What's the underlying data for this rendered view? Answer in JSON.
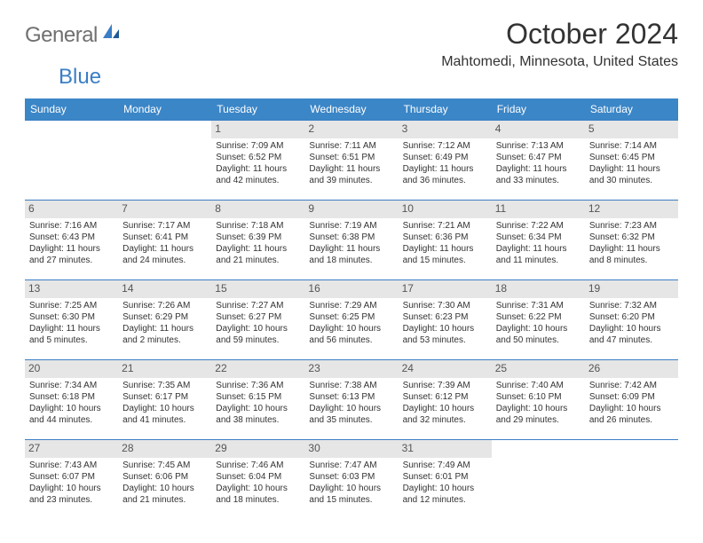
{
  "logo": {
    "text_gray": "General",
    "text_blue": "Blue"
  },
  "title": {
    "month": "October 2024",
    "location": "Mahtomedi, Minnesota, United States"
  },
  "colors": {
    "header_bg": "#3b86c7",
    "header_text": "#ffffff",
    "border": "#3b7ec4",
    "daynum_bg": "#e6e6e6",
    "text": "#333333",
    "logo_gray": "#707070",
    "logo_blue": "#3b7ec4"
  },
  "day_headers": [
    "Sunday",
    "Monday",
    "Tuesday",
    "Wednesday",
    "Thursday",
    "Friday",
    "Saturday"
  ],
  "weeks": [
    [
      {
        "day": "",
        "lines": []
      },
      {
        "day": "",
        "lines": []
      },
      {
        "day": "1",
        "lines": [
          "Sunrise: 7:09 AM",
          "Sunset: 6:52 PM",
          "Daylight: 11 hours",
          "and 42 minutes."
        ]
      },
      {
        "day": "2",
        "lines": [
          "Sunrise: 7:11 AM",
          "Sunset: 6:51 PM",
          "Daylight: 11 hours",
          "and 39 minutes."
        ]
      },
      {
        "day": "3",
        "lines": [
          "Sunrise: 7:12 AM",
          "Sunset: 6:49 PM",
          "Daylight: 11 hours",
          "and 36 minutes."
        ]
      },
      {
        "day": "4",
        "lines": [
          "Sunrise: 7:13 AM",
          "Sunset: 6:47 PM",
          "Daylight: 11 hours",
          "and 33 minutes."
        ]
      },
      {
        "day": "5",
        "lines": [
          "Sunrise: 7:14 AM",
          "Sunset: 6:45 PM",
          "Daylight: 11 hours",
          "and 30 minutes."
        ]
      }
    ],
    [
      {
        "day": "6",
        "lines": [
          "Sunrise: 7:16 AM",
          "Sunset: 6:43 PM",
          "Daylight: 11 hours",
          "and 27 minutes."
        ]
      },
      {
        "day": "7",
        "lines": [
          "Sunrise: 7:17 AM",
          "Sunset: 6:41 PM",
          "Daylight: 11 hours",
          "and 24 minutes."
        ]
      },
      {
        "day": "8",
        "lines": [
          "Sunrise: 7:18 AM",
          "Sunset: 6:39 PM",
          "Daylight: 11 hours",
          "and 21 minutes."
        ]
      },
      {
        "day": "9",
        "lines": [
          "Sunrise: 7:19 AM",
          "Sunset: 6:38 PM",
          "Daylight: 11 hours",
          "and 18 minutes."
        ]
      },
      {
        "day": "10",
        "lines": [
          "Sunrise: 7:21 AM",
          "Sunset: 6:36 PM",
          "Daylight: 11 hours",
          "and 15 minutes."
        ]
      },
      {
        "day": "11",
        "lines": [
          "Sunrise: 7:22 AM",
          "Sunset: 6:34 PM",
          "Daylight: 11 hours",
          "and 11 minutes."
        ]
      },
      {
        "day": "12",
        "lines": [
          "Sunrise: 7:23 AM",
          "Sunset: 6:32 PM",
          "Daylight: 11 hours",
          "and 8 minutes."
        ]
      }
    ],
    [
      {
        "day": "13",
        "lines": [
          "Sunrise: 7:25 AM",
          "Sunset: 6:30 PM",
          "Daylight: 11 hours",
          "and 5 minutes."
        ]
      },
      {
        "day": "14",
        "lines": [
          "Sunrise: 7:26 AM",
          "Sunset: 6:29 PM",
          "Daylight: 11 hours",
          "and 2 minutes."
        ]
      },
      {
        "day": "15",
        "lines": [
          "Sunrise: 7:27 AM",
          "Sunset: 6:27 PM",
          "Daylight: 10 hours",
          "and 59 minutes."
        ]
      },
      {
        "day": "16",
        "lines": [
          "Sunrise: 7:29 AM",
          "Sunset: 6:25 PM",
          "Daylight: 10 hours",
          "and 56 minutes."
        ]
      },
      {
        "day": "17",
        "lines": [
          "Sunrise: 7:30 AM",
          "Sunset: 6:23 PM",
          "Daylight: 10 hours",
          "and 53 minutes."
        ]
      },
      {
        "day": "18",
        "lines": [
          "Sunrise: 7:31 AM",
          "Sunset: 6:22 PM",
          "Daylight: 10 hours",
          "and 50 minutes."
        ]
      },
      {
        "day": "19",
        "lines": [
          "Sunrise: 7:32 AM",
          "Sunset: 6:20 PM",
          "Daylight: 10 hours",
          "and 47 minutes."
        ]
      }
    ],
    [
      {
        "day": "20",
        "lines": [
          "Sunrise: 7:34 AM",
          "Sunset: 6:18 PM",
          "Daylight: 10 hours",
          "and 44 minutes."
        ]
      },
      {
        "day": "21",
        "lines": [
          "Sunrise: 7:35 AM",
          "Sunset: 6:17 PM",
          "Daylight: 10 hours",
          "and 41 minutes."
        ]
      },
      {
        "day": "22",
        "lines": [
          "Sunrise: 7:36 AM",
          "Sunset: 6:15 PM",
          "Daylight: 10 hours",
          "and 38 minutes."
        ]
      },
      {
        "day": "23",
        "lines": [
          "Sunrise: 7:38 AM",
          "Sunset: 6:13 PM",
          "Daylight: 10 hours",
          "and 35 minutes."
        ]
      },
      {
        "day": "24",
        "lines": [
          "Sunrise: 7:39 AM",
          "Sunset: 6:12 PM",
          "Daylight: 10 hours",
          "and 32 minutes."
        ]
      },
      {
        "day": "25",
        "lines": [
          "Sunrise: 7:40 AM",
          "Sunset: 6:10 PM",
          "Daylight: 10 hours",
          "and 29 minutes."
        ]
      },
      {
        "day": "26",
        "lines": [
          "Sunrise: 7:42 AM",
          "Sunset: 6:09 PM",
          "Daylight: 10 hours",
          "and 26 minutes."
        ]
      }
    ],
    [
      {
        "day": "27",
        "lines": [
          "Sunrise: 7:43 AM",
          "Sunset: 6:07 PM",
          "Daylight: 10 hours",
          "and 23 minutes."
        ]
      },
      {
        "day": "28",
        "lines": [
          "Sunrise: 7:45 AM",
          "Sunset: 6:06 PM",
          "Daylight: 10 hours",
          "and 21 minutes."
        ]
      },
      {
        "day": "29",
        "lines": [
          "Sunrise: 7:46 AM",
          "Sunset: 6:04 PM",
          "Daylight: 10 hours",
          "and 18 minutes."
        ]
      },
      {
        "day": "30",
        "lines": [
          "Sunrise: 7:47 AM",
          "Sunset: 6:03 PM",
          "Daylight: 10 hours",
          "and 15 minutes."
        ]
      },
      {
        "day": "31",
        "lines": [
          "Sunrise: 7:49 AM",
          "Sunset: 6:01 PM",
          "Daylight: 10 hours",
          "and 12 minutes."
        ]
      },
      {
        "day": "",
        "lines": []
      },
      {
        "day": "",
        "lines": []
      }
    ]
  ]
}
